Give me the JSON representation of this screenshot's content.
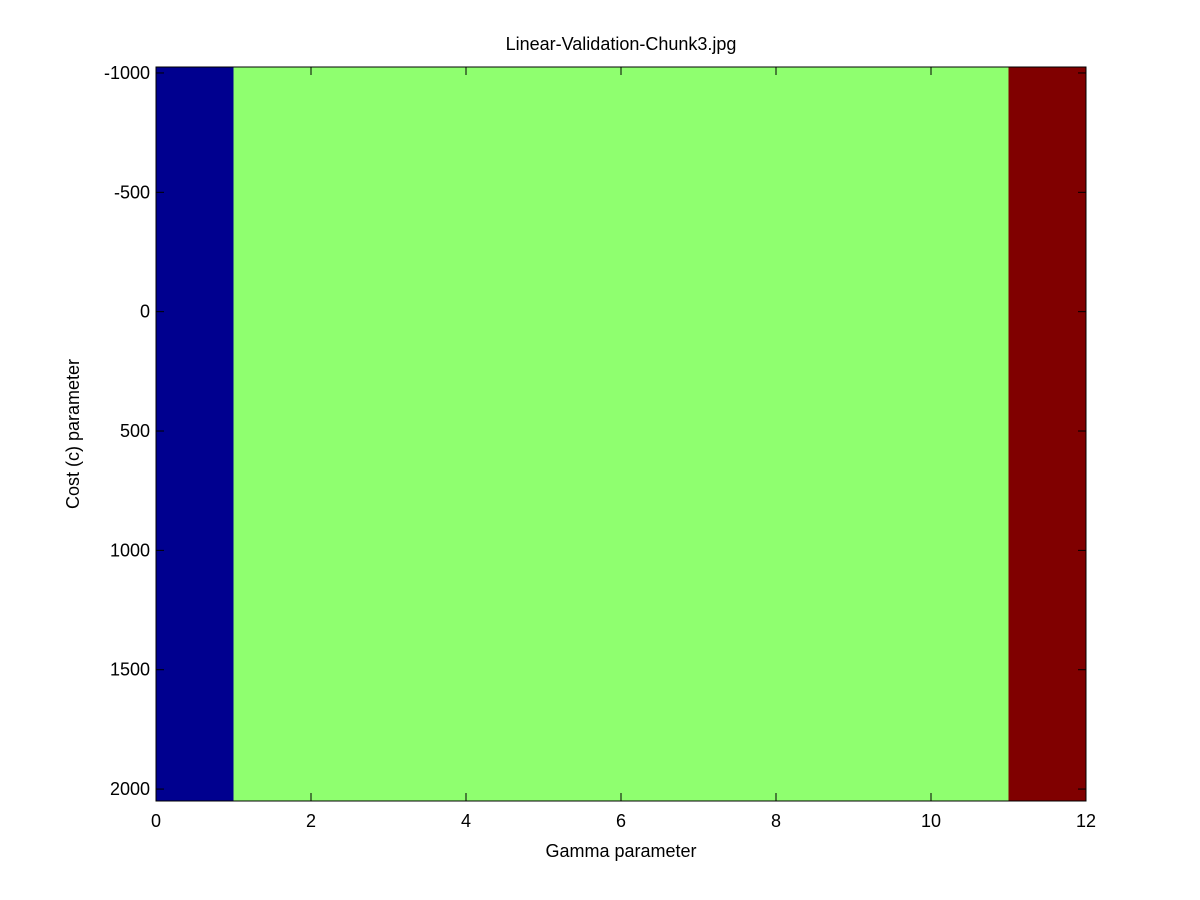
{
  "chart_data": {
    "type": "heatmap",
    "title": "Linear-Validation-Chunk3.jpg",
    "xlabel": "Gamma parameter",
    "ylabel": "Cost (c) parameter",
    "xlim": [
      0,
      12
    ],
    "ylim": [
      -1025,
      2050
    ],
    "y_reversed": true,
    "x_ticks": [
      0,
      2,
      4,
      6,
      8,
      10,
      12
    ],
    "x_tick_labels": [
      "0",
      "2",
      "4",
      "6",
      "8",
      "10",
      "12"
    ],
    "y_ticks": [
      -1000,
      -500,
      0,
      500,
      1000,
      1500,
      2000
    ],
    "y_tick_labels": [
      "-1000",
      "-500",
      "0",
      "500",
      "1000",
      "1500",
      "2000"
    ],
    "cells": [
      {
        "x0": 0,
        "x1": 1,
        "y0": -1025,
        "y1": 2050,
        "color": "#00008f"
      },
      {
        "x0": 1,
        "x1": 11,
        "y0": -1025,
        "y1": 2050,
        "color": "#8fff6f"
      },
      {
        "x0": 11,
        "x1": 12,
        "y0": -1025,
        "y1": 2050,
        "color": "#800000"
      }
    ],
    "grid": false,
    "legend": "none"
  }
}
